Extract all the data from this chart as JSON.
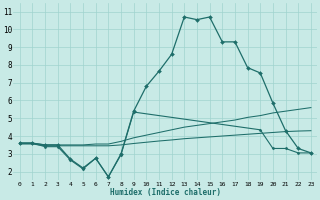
{
  "xlabel": "Humidex (Indice chaleur)",
  "background_color": "#c8eae6",
  "grid_color": "#a0d4ce",
  "line_color": "#1e6e6a",
  "xlim": [
    -0.5,
    23.5
  ],
  "ylim": [
    1.5,
    11.5
  ],
  "xticks": [
    0,
    1,
    2,
    3,
    4,
    5,
    6,
    7,
    8,
    9,
    10,
    11,
    12,
    13,
    14,
    15,
    16,
    17,
    18,
    19,
    20,
    21,
    22,
    23
  ],
  "yticks": [
    2,
    3,
    4,
    5,
    6,
    7,
    8,
    9,
    10,
    11
  ],
  "series": [
    {
      "x": [
        0,
        1,
        2,
        3,
        4,
        5,
        6,
        7,
        8,
        9,
        10,
        11,
        12,
        13,
        14,
        15,
        16,
        17,
        18,
        19,
        20,
        21,
        22,
        23
      ],
      "y": [
        3.6,
        3.6,
        3.5,
        3.5,
        2.7,
        2.2,
        2.75,
        1.7,
        3.0,
        5.4,
        6.8,
        7.65,
        8.6,
        10.7,
        10.55,
        10.7,
        9.3,
        9.3,
        7.85,
        7.55,
        5.85,
        4.3,
        3.3,
        3.05
      ],
      "marker": "D",
      "markersize": 2.0,
      "linewidth": 0.9
    },
    {
      "x": [
        0,
        1,
        2,
        3,
        4,
        5,
        6,
        7,
        8,
        9,
        19,
        20,
        21,
        22,
        23
      ],
      "y": [
        3.6,
        3.6,
        3.4,
        3.4,
        2.65,
        2.15,
        2.75,
        1.7,
        2.95,
        5.35,
        4.35,
        3.3,
        3.3,
        3.05,
        3.05
      ],
      "marker": "D",
      "markersize": 1.5,
      "linewidth": 0.8
    },
    {
      "x": [
        0,
        1,
        2,
        3,
        4,
        5,
        6,
        7,
        8,
        9,
        10,
        11,
        12,
        13,
        14,
        15,
        16,
        17,
        18,
        19,
        20,
        21,
        22,
        23
      ],
      "y": [
        3.6,
        3.6,
        3.5,
        3.5,
        3.5,
        3.5,
        3.55,
        3.55,
        3.7,
        3.9,
        4.05,
        4.2,
        4.35,
        4.5,
        4.6,
        4.7,
        4.8,
        4.9,
        5.05,
        5.15,
        5.3,
        5.4,
        5.5,
        5.6
      ],
      "marker": null,
      "markersize": 0,
      "linewidth": 0.75
    },
    {
      "x": [
        0,
        1,
        2,
        3,
        4,
        5,
        6,
        7,
        8,
        9,
        10,
        11,
        12,
        13,
        14,
        15,
        16,
        17,
        18,
        19,
        20,
        21,
        22,
        23
      ],
      "y": [
        3.55,
        3.55,
        3.45,
        3.45,
        3.45,
        3.45,
        3.45,
        3.45,
        3.5,
        3.58,
        3.65,
        3.72,
        3.78,
        3.85,
        3.9,
        3.95,
        4.0,
        4.05,
        4.1,
        4.15,
        4.2,
        4.25,
        4.28,
        4.3
      ],
      "marker": null,
      "markersize": 0,
      "linewidth": 0.75
    }
  ]
}
